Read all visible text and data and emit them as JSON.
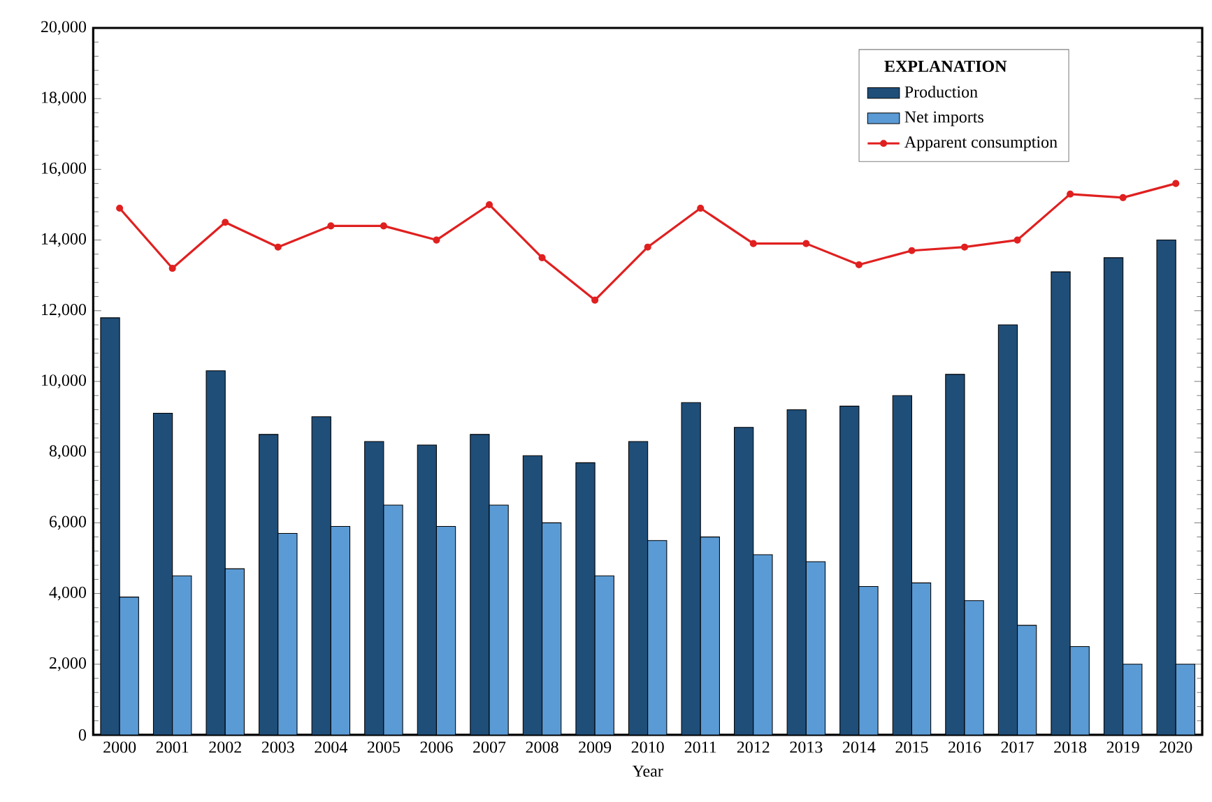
{
  "chart_data": {
    "type": "bar",
    "xlabel": "Year",
    "legend_title": "EXPLANATION",
    "legend": "top right",
    "grid": false,
    "categories": [
      "2000",
      "2001",
      "2002",
      "2003",
      "2004",
      "2005",
      "2006",
      "2007",
      "2008",
      "2009",
      "2010",
      "2011",
      "2012",
      "2013",
      "2014",
      "2015",
      "2016",
      "2017",
      "2018",
      "2019",
      "2020"
    ],
    "series": [
      {
        "name": "Production",
        "color": "#1f4e79",
        "values": [
          11800,
          9100,
          10300,
          8500,
          9000,
          8300,
          8200,
          8500,
          7900,
          7700,
          8300,
          9400,
          8700,
          9200,
          9300,
          9600,
          10200,
          11600,
          13100,
          13500,
          14000
        ]
      },
      {
        "name": "Net imports",
        "color": "#5b9bd5",
        "values": [
          3900,
          4500,
          4700,
          5700,
          5900,
          6500,
          5900,
          6500,
          6000,
          4500,
          5500,
          5600,
          5100,
          4900,
          4200,
          4300,
          3800,
          3100,
          2500,
          2000,
          2000
        ]
      },
      {
        "name": "Apparent consumption",
        "type": "line",
        "marker": "circle",
        "line_style": "solid",
        "color": "#e02020",
        "values": [
          14900,
          13200,
          14500,
          13800,
          14400,
          14400,
          14000,
          15000,
          13500,
          12300,
          13800,
          14900,
          13900,
          13900,
          13300,
          13700,
          13800,
          14000,
          15300,
          15200,
          15600
        ]
      }
    ],
    "ylim": [
      0,
      20000
    ],
    "yticks": [
      0,
      {
        "value": 2000,
        "label": "2,000"
      },
      {
        "value": 4000,
        "label": "4,000"
      },
      {
        "value": 6000,
        "label": "6,000"
      },
      {
        "value": 8000,
        "label": "8,000"
      },
      {
        "value": 10000,
        "label": "10,000"
      },
      {
        "value": 12000,
        "label": "12,000"
      },
      {
        "value": 14000,
        "label": "14,000"
      },
      {
        "value": 16000,
        "label": "16,000"
      },
      {
        "value": 18000,
        "label": "18,000"
      },
      {
        "value": 20000,
        "label": "20,000"
      }
    ]
  }
}
